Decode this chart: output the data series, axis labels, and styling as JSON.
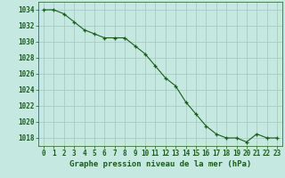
{
  "x": [
    0,
    1,
    2,
    3,
    4,
    5,
    6,
    7,
    8,
    9,
    10,
    11,
    12,
    13,
    14,
    15,
    16,
    17,
    18,
    19,
    20,
    21,
    22,
    23
  ],
  "y": [
    1034,
    1034,
    1033.5,
    1032.5,
    1031.5,
    1031,
    1030.5,
    1030.5,
    1030.5,
    1029.5,
    1028.5,
    1027,
    1025.5,
    1024.5,
    1022.5,
    1021,
    1019.5,
    1018.5,
    1018,
    1018,
    1017.5,
    1018.5,
    1018,
    1018
  ],
  "line_color": "#1a5c1a",
  "marker_color": "#1a5c1a",
  "bg_color": "#c5e8e0",
  "grid_color": "#a0c8b8",
  "ylabel_ticks": [
    1018,
    1020,
    1022,
    1024,
    1026,
    1028,
    1030,
    1032,
    1034
  ],
  "ylim": [
    1017,
    1035
  ],
  "xlim": [
    -0.5,
    23.5
  ],
  "xlabel": "Graphe pression niveau de la mer (hPa)",
  "xlabel_color": "#1a5c1a",
  "tick_color": "#1a5c1a",
  "fontsize_label": 6.5,
  "fontsize_tick": 5.5
}
